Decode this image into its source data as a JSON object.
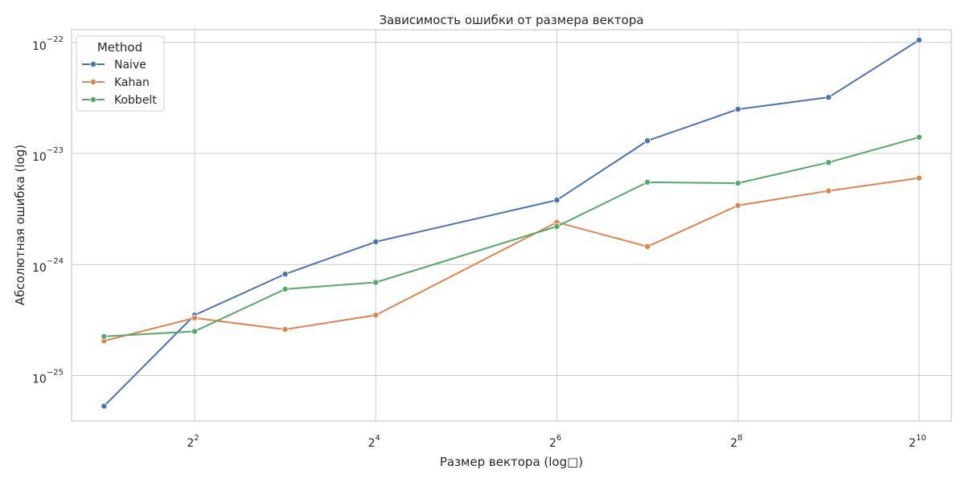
{
  "chart_data": {
    "type": "line",
    "title": "Зависимость ошибки от размера вектора",
    "xlabel": "Размер вектора (log□)",
    "ylabel": "Абсолютная ошибка (log)",
    "x_scale": "log2",
    "y_scale": "log10",
    "x": [
      2,
      4,
      8,
      16,
      64,
      128,
      256,
      512,
      1024
    ],
    "xlim": [
      1.56,
      1310
    ],
    "ylim": [
      3.9e-26,
      1.3e-22
    ],
    "x_ticks": [
      {
        "value": 4,
        "base": "2",
        "exp": "2"
      },
      {
        "value": 16,
        "base": "2",
        "exp": "4"
      },
      {
        "value": 64,
        "base": "2",
        "exp": "6"
      },
      {
        "value": 256,
        "base": "2",
        "exp": "8"
      },
      {
        "value": 1024,
        "base": "2",
        "exp": "10"
      }
    ],
    "y_ticks": [
      {
        "value": 1e-25,
        "base": "10",
        "exp": "−25"
      },
      {
        "value": 1e-24,
        "base": "10",
        "exp": "−24"
      },
      {
        "value": 1e-23,
        "base": "10",
        "exp": "−23"
      },
      {
        "value": 1e-22,
        "base": "10",
        "exp": "−22"
      }
    ],
    "grid": true,
    "legend_title": "Method",
    "legend_position": "top-left",
    "series": [
      {
        "name": "Naive",
        "color": "#4c72b0",
        "values": [
          5.3e-26,
          3.5e-25,
          8.2e-25,
          1.6e-24,
          3.8e-24,
          1.3e-23,
          2.5e-23,
          3.2e-23,
          1.05e-22
        ]
      },
      {
        "name": "Kahan",
        "color": "#dd8452",
        "values": [
          2.05e-25,
          3.3e-25,
          2.6e-25,
          3.5e-25,
          2.4e-24,
          1.45e-24,
          3.4e-24,
          4.6e-24,
          6e-24
        ]
      },
      {
        "name": "Kobbelt",
        "color": "#55a868",
        "values": [
          2.25e-25,
          2.5e-25,
          6e-25,
          6.9e-25,
          2.2e-24,
          5.5e-24,
          5.4e-24,
          8.3e-24,
          1.4e-23
        ]
      }
    ]
  }
}
